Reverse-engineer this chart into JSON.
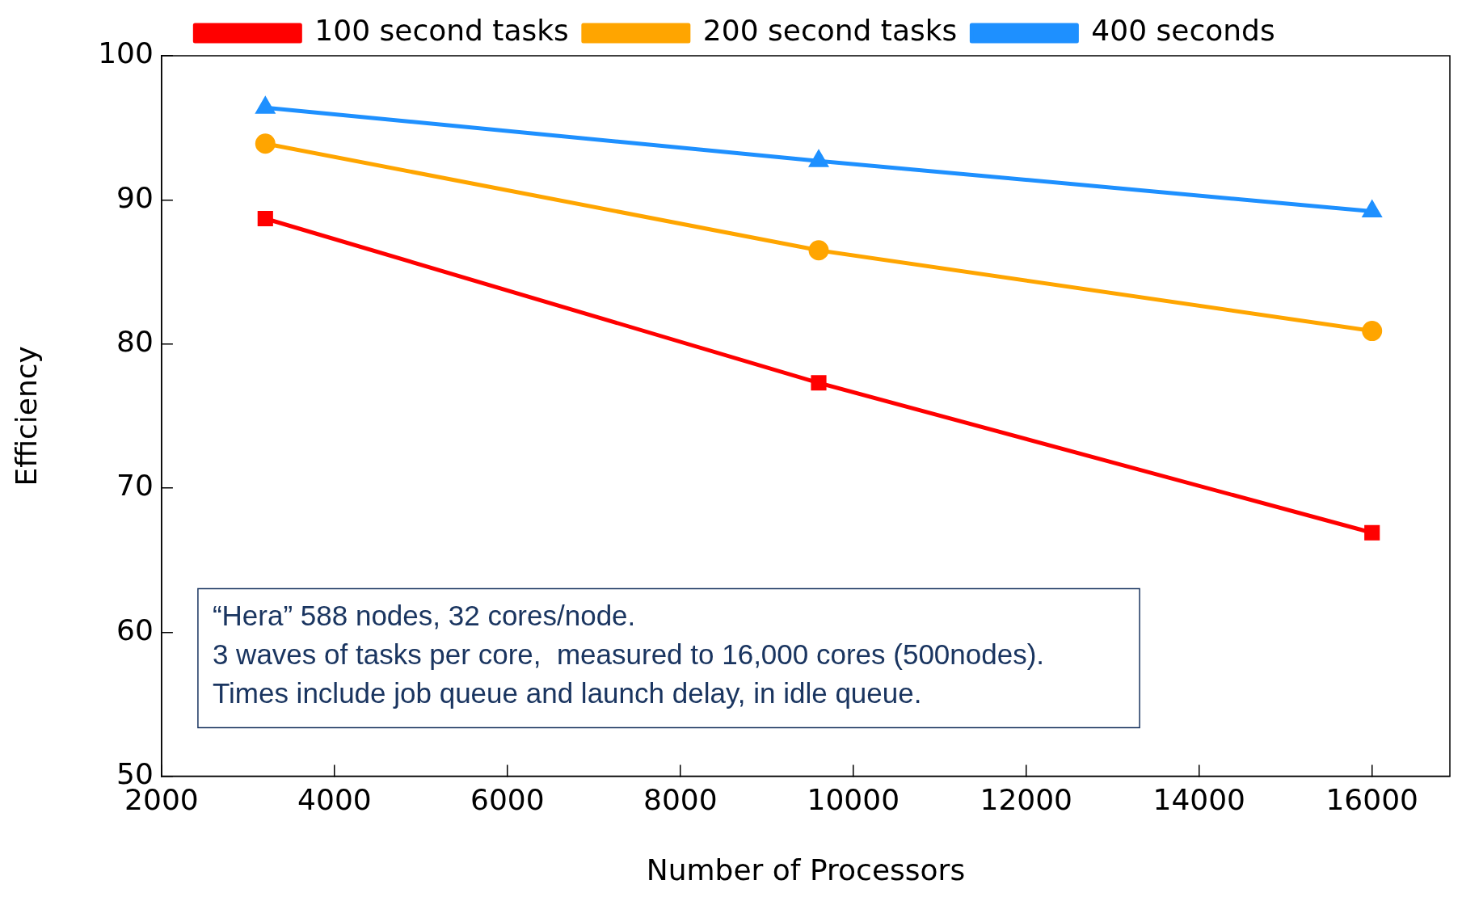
{
  "chart_data": {
    "type": "line",
    "xlabel": "Number of Processors",
    "ylabel": "Efficiency",
    "x": [
      3200,
      9600,
      16000
    ],
    "xlim": [
      2000,
      16900
    ],
    "xticks": [
      2000,
      4000,
      6000,
      8000,
      10000,
      12000,
      14000,
      16000
    ],
    "ylim": [
      50,
      100
    ],
    "yticks": [
      50,
      60,
      70,
      80,
      90,
      100
    ],
    "series": [
      {
        "name": "100 second tasks",
        "color": "#ff0000",
        "marker": "square",
        "values": [
          88.7,
          77.3,
          66.9
        ]
      },
      {
        "name": "200 second tasks",
        "color": "#ffa500",
        "marker": "circle",
        "values": [
          93.9,
          86.5,
          80.9
        ]
      },
      {
        "name": "400 seconds",
        "color": "#1e90ff",
        "marker": "triangle",
        "values": [
          96.4,
          92.7,
          89.2
        ]
      }
    ],
    "annotations": [
      "“Hera” 588 nodes, 32 cores/node.",
      "3 waves of tasks per core,  measured to 16,000 cores (500nodes).",
      "Times include job queue and launch delay, in idle queue."
    ],
    "legend": "top",
    "grid": false,
    "line_style": "solid"
  }
}
